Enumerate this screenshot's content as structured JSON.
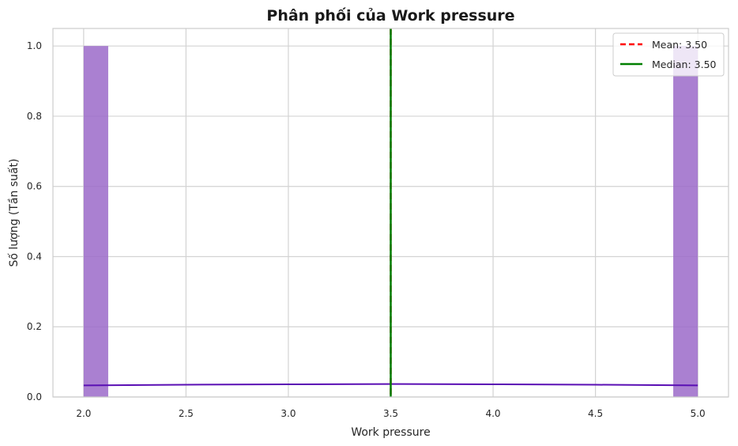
{
  "chart_data": {
    "type": "bar",
    "title": "Phân phối của Work pressure",
    "xlabel": "Work pressure",
    "ylabel": "Số lượng (Tần suất)",
    "xlim": [
      1.85,
      5.15
    ],
    "ylim": [
      0,
      1.05
    ],
    "xticks": [
      "2.0",
      "2.5",
      "3.0",
      "3.5",
      "4.0",
      "4.5",
      "5.0"
    ],
    "yticks": [
      "0.0",
      "0.2",
      "0.4",
      "0.6",
      "0.8",
      "1.0"
    ],
    "grid": true,
    "histogram": {
      "bin_width": 0.12,
      "bars": [
        {
          "x_start": 2.0,
          "x_end": 2.12,
          "value": 1
        },
        {
          "x_start": 4.88,
          "x_end": 5.0,
          "value": 1
        }
      ],
      "color": "#9b6ac9"
    },
    "kde": {
      "x": [
        2.0,
        2.5,
        3.0,
        3.5,
        4.0,
        4.5,
        5.0
      ],
      "y": [
        0.033,
        0.035,
        0.036,
        0.037,
        0.036,
        0.035,
        0.033
      ],
      "color": "#5a0fb4"
    },
    "mean": {
      "value": 3.5,
      "label": "Mean: 3.50",
      "color": "#ff0000"
    },
    "median": {
      "value": 3.5,
      "label": "Median: 3.50",
      "color": "#007f00"
    },
    "legend_position": "top-right"
  }
}
